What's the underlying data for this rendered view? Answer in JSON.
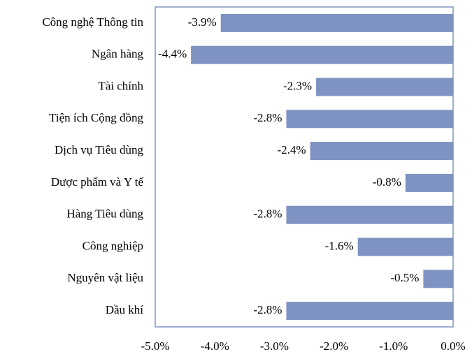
{
  "chart_data": {
    "type": "barh",
    "categories": [
      "Công nghệ Thông tin",
      "Ngân hàng",
      "Tài chính",
      "Tiện ích Cộng đồng",
      "Dịch vụ Tiêu dùng",
      "Dược phẩm và Y tế",
      "Hàng Tiêu dùng",
      "Công nghiệp",
      "Nguyên vật liệu",
      "Dầu khí"
    ],
    "values": [
      -3.9,
      -4.4,
      -2.3,
      -2.8,
      -2.4,
      -0.8,
      -2.8,
      -1.6,
      -0.5,
      -2.8
    ],
    "value_labels": [
      "-3.9%",
      "-4.4%",
      "-2.3%",
      "-2.8%",
      "-2.4%",
      "-0.8%",
      "-2.8%",
      "-1.6%",
      "-0.5%",
      "-2.8%"
    ],
    "color": "#7f93c2",
    "xlim": [
      -5,
      0
    ],
    "xticks": [
      {
        "value": -5,
        "label": "-5.0%"
      },
      {
        "value": -4,
        "label": "-4.0%"
      },
      {
        "value": -3,
        "label": "-3.0%"
      },
      {
        "value": -2,
        "label": "-2.0%"
      },
      {
        "value": -1,
        "label": "-1.0%"
      },
      {
        "value": 0,
        "label": "0.0%"
      }
    ]
  }
}
